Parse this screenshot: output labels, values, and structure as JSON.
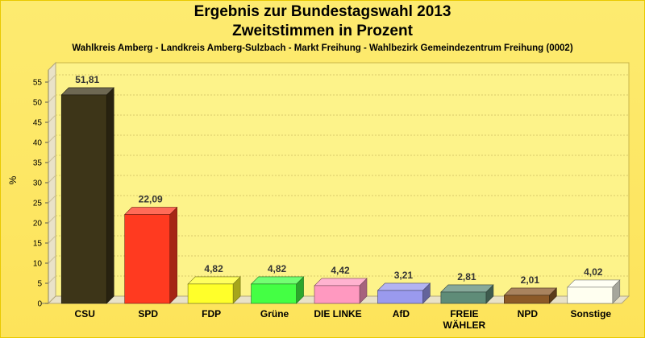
{
  "chart_data": {
    "type": "bar",
    "title": "Ergebnis zur Bundestagswahl 2013",
    "title2": "Zweitstimmen in Prozent",
    "subtitle": "Wahlkreis Amberg - Landkreis Amberg-Sulzbach - Markt Freihung - Wahlbezirk Gemeindezentrum Freihung (0002)",
    "ylabel": "%",
    "xlabel": "",
    "ylim": [
      0,
      58
    ],
    "yticks": [
      0,
      5,
      10,
      15,
      20,
      25,
      30,
      35,
      40,
      45,
      50,
      55
    ],
    "grid": true,
    "categories": [
      "CSU",
      "SPD",
      "FDP",
      "Grüne",
      "DIE LINKE",
      "AfD",
      "FREIE WÄHLER",
      "NPD",
      "Sonstige"
    ],
    "category_lines": [
      [
        "CSU"
      ],
      [
        "SPD"
      ],
      [
        "FDP"
      ],
      [
        "Grüne"
      ],
      [
        "DIE LINKE"
      ],
      [
        "AfD"
      ],
      [
        "FREIE",
        "WÄHLER"
      ],
      [
        "NPD"
      ],
      [
        "Sonstige"
      ]
    ],
    "values": [
      51.81,
      22.09,
      4.82,
      4.82,
      4.42,
      3.21,
      2.81,
      2.01,
      4.02
    ],
    "value_labels": [
      "51,81",
      "22,09",
      "4,82",
      "4,82",
      "4,42",
      "3,21",
      "2,81",
      "2,01",
      "4,02"
    ],
    "colors": [
      "#3d3518",
      "#ff3a20",
      "#ffff2a",
      "#44ff44",
      "#ff99c0",
      "#9a9aee",
      "#5f8c78",
      "#8c5a28",
      "#fffff0"
    ]
  }
}
